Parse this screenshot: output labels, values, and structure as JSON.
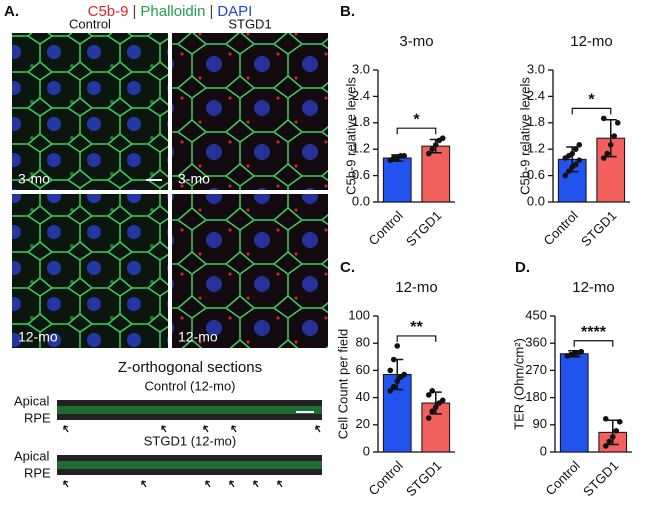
{
  "figure": {
    "panel_a": {
      "label": "A.",
      "stains": [
        {
          "text": "C5b-9",
          "color": "#e02424"
        },
        {
          "text": "Phalloidin",
          "color": "#1fa34a"
        },
        {
          "text": "DAPI",
          "color": "#2545d8"
        }
      ],
      "columns": [
        "Control",
        "STGD1"
      ],
      "timepoints": [
        "3-mo",
        "12-mo"
      ],
      "section_title": "Z-orthogonal sections",
      "sections": [
        {
          "title": "Control (12-mo)",
          "labels": [
            "Apical",
            "RPE"
          ]
        },
        {
          "title": "STGD1 (12-mo)",
          "labels": [
            "Apical",
            "RPE"
          ]
        }
      ]
    },
    "panel_labels": [
      "B.",
      "C.",
      "D."
    ]
  },
  "chart_data": [
    {
      "type": "bar",
      "title": "3-mo",
      "y_label": "C5b-9 relative levels",
      "categories": [
        "Control",
        "STGD1"
      ],
      "colors": [
        "#2353ee",
        "#f2605e"
      ],
      "values": [
        1.0,
        1.27
      ],
      "errors": [
        0.07,
        0.15
      ],
      "points": [
        [
          0.95,
          1.0,
          1.0,
          1.05,
          1.05
        ],
        [
          1.1,
          1.2,
          1.3,
          1.4,
          1.45
        ]
      ],
      "significance": "*",
      "ylim": [
        0,
        3
      ],
      "yticks": [
        {
          "value": 0,
          "label": "0.0"
        },
        0.6,
        1.2,
        1.8,
        2.4,
        {
          "value": 3,
          "label": "3.0"
        }
      ]
    },
    {
      "type": "bar",
      "title": "12-mo",
      "y_label": "C5b-9 relative levels",
      "categories": [
        "Control",
        "STGD1"
      ],
      "colors": [
        "#2353ee",
        "#f2605e"
      ],
      "values": [
        0.97,
        1.45
      ],
      "errors": [
        0.28,
        0.42
      ],
      "points": [
        [
          0.6,
          0.7,
          0.8,
          0.85,
          0.95,
          1.0,
          1.05,
          1.1,
          1.2,
          1.3
        ],
        [
          1.0,
          1.1,
          1.3,
          1.5,
          1.8,
          1.9
        ]
      ],
      "significance": "*",
      "ylim": [
        0,
        3
      ],
      "yticks": [
        {
          "value": 0,
          "label": "0.0"
        },
        0.6,
        1.2,
        1.8,
        2.4,
        {
          "value": 3,
          "label": "3.0"
        }
      ]
    },
    {
      "type": "bar",
      "title": "12-mo",
      "y_label": "Cell Count per field",
      "categories": [
        "Control",
        "STGD1"
      ],
      "colors": [
        "#2353ee",
        "#f2605e"
      ],
      "values": [
        57,
        36
      ],
      "errors": [
        11,
        8
      ],
      "points": [
        [
          45,
          48,
          52,
          55,
          57,
          60,
          68,
          78
        ],
        [
          25,
          30,
          33,
          36,
          38,
          42,
          45
        ]
      ],
      "significance": "**",
      "ylim": [
        0,
        100
      ],
      "yticks": [
        0,
        20,
        40,
        60,
        80,
        100
      ]
    },
    {
      "type": "bar",
      "title": "12-mo",
      "y_label": "TER (Ohm/cm²)",
      "categories": [
        "Control",
        "STGD1"
      ],
      "colors": [
        "#2353ee",
        "#f2605e"
      ],
      "values": [
        325,
        65
      ],
      "errors": [
        10,
        40
      ],
      "points": [
        [
          318,
          322,
          325,
          328,
          332
        ],
        [
          20,
          35,
          50,
          70,
          100,
          110
        ]
      ],
      "significance": "****",
      "ylim": [
        0,
        450
      ],
      "yticks": [
        0,
        90,
        180,
        270,
        360,
        450
      ]
    }
  ]
}
